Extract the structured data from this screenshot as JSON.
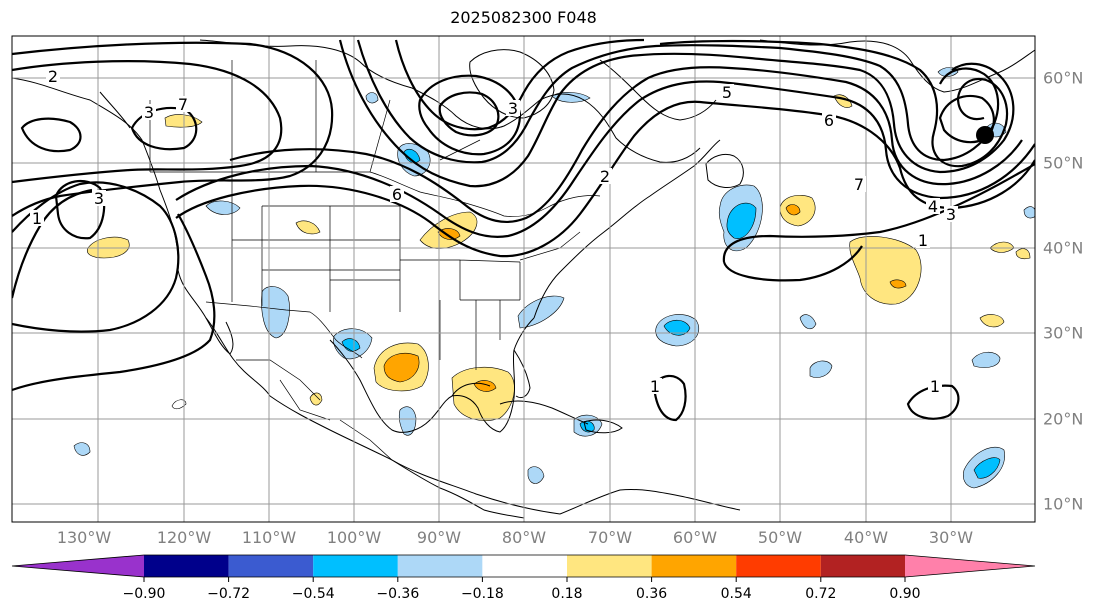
{
  "title": "2025082300 F048",
  "lon_labels": [
    "130°W",
    "120°W",
    "110°W",
    "100°W",
    "90°W",
    "80°W",
    "70°W",
    "60°W",
    "50°W",
    "40°W",
    "30°W"
  ],
  "lat_labels": [
    "60°N",
    "50°N",
    "40°N",
    "30°N",
    "20°N",
    "10°N"
  ],
  "contour_labels": [
    "2",
    "3",
    "7",
    "3",
    "1",
    "6",
    "3",
    "2",
    "5",
    "6",
    "7",
    "4",
    "3",
    "1",
    "1",
    "1"
  ],
  "colorbar": {
    "ticks": [
      "−0.90",
      "−0.72",
      "−0.54",
      "−0.36",
      "−0.18",
      "0.18",
      "0.36",
      "0.54",
      "0.72",
      "0.90"
    ],
    "colors": [
      "#9932cc",
      "#00008b",
      "#3b5bd0",
      "#00bfff",
      "#add8f7",
      "#ffffff",
      "#ffe680",
      "#ffa500",
      "#ff3c00",
      "#b22222",
      "#ff80aa"
    ]
  }
}
